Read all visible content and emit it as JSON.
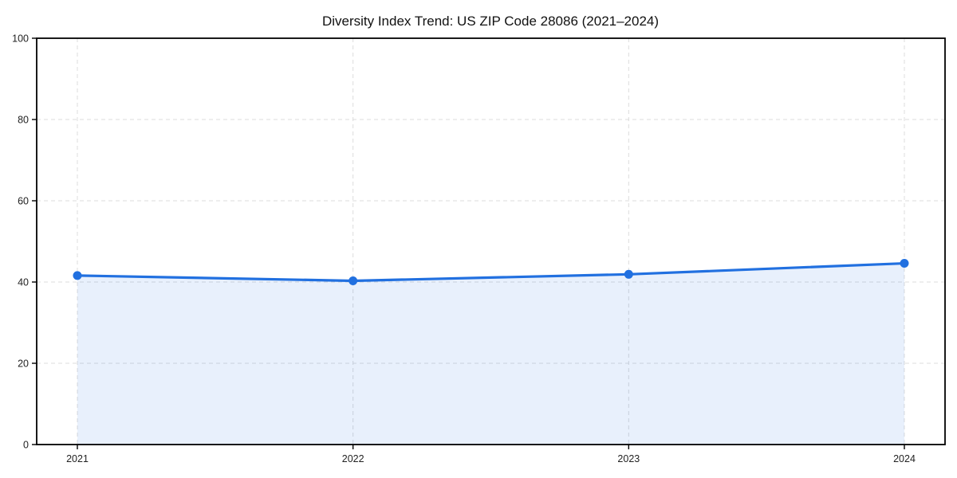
{
  "page": {
    "background_color": "#ffffff"
  },
  "chart_data": {
    "type": "area",
    "title": "Diversity Index Trend: US ZIP Code 28086 (2021–2024)",
    "categories": [
      "2021",
      "2022",
      "2023",
      "2024"
    ],
    "series": [
      {
        "name": "Diversity Index",
        "values": [
          41.6,
          40.3,
          41.9,
          44.6
        ]
      }
    ],
    "xlabel": "",
    "ylabel": "",
    "ylim": [
      0,
      100
    ],
    "yticks": [
      0,
      20,
      40,
      60,
      80,
      100
    ],
    "grid": true,
    "grid_style": "dashed",
    "legend_position": "none",
    "line_color": "#2170e0",
    "marker_color": "#2170e0",
    "fill_color": "#2170e0",
    "fill_opacity": 0.1,
    "grid_color": "#dcdcdc",
    "spine_color": "#000000",
    "tick_label_color": "#222222",
    "title_color": "#111111"
  }
}
